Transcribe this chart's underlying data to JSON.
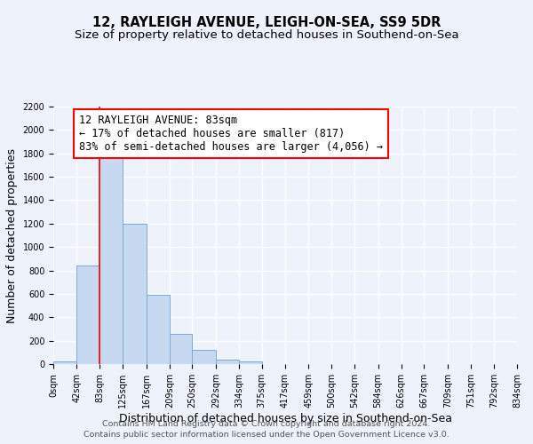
{
  "title": "12, RAYLEIGH AVENUE, LEIGH-ON-SEA, SS9 5DR",
  "subtitle": "Size of property relative to detached houses in Southend-on-Sea",
  "xlabel": "Distribution of detached houses by size in Southend-on-Sea",
  "ylabel": "Number of detached properties",
  "bar_edges": [
    0,
    42,
    83,
    125,
    167,
    209,
    250,
    292,
    334,
    375,
    417,
    459,
    500,
    542,
    584,
    626,
    667,
    709,
    751,
    792,
    834
  ],
  "bar_heights": [
    25,
    840,
    1800,
    1200,
    590,
    255,
    120,
    40,
    25,
    0,
    0,
    0,
    0,
    0,
    0,
    0,
    0,
    0,
    0,
    0
  ],
  "bar_color": "#c6d9f0",
  "bar_edge_color": "#7aabcf",
  "property_line_x": 83,
  "property_line_color": "red",
  "annotation_title": "12 RAYLEIGH AVENUE: 83sqm",
  "annotation_line1": "← 17% of detached houses are smaller (817)",
  "annotation_line2": "83% of semi-detached houses are larger (4,056) →",
  "annotation_box_color": "white",
  "annotation_box_edge_color": "red",
  "ylim": [
    0,
    2200
  ],
  "xlim": [
    0,
    834
  ],
  "tick_labels": [
    "0sqm",
    "42sqm",
    "83sqm",
    "125sqm",
    "167sqm",
    "209sqm",
    "250sqm",
    "292sqm",
    "334sqm",
    "375sqm",
    "417sqm",
    "459sqm",
    "500sqm",
    "542sqm",
    "584sqm",
    "626sqm",
    "667sqm",
    "709sqm",
    "751sqm",
    "792sqm",
    "834sqm"
  ],
  "footer1": "Contains HM Land Registry data © Crown copyright and database right 2024.",
  "footer2": "Contains public sector information licensed under the Open Government Licence v3.0.",
  "background_color": "#eef2fb",
  "grid_color": "white",
  "title_fontsize": 10.5,
  "subtitle_fontsize": 9.5,
  "axis_label_fontsize": 9,
  "tick_fontsize": 7,
  "footer_fontsize": 6.8,
  "annotation_fontsize": 8.5
}
